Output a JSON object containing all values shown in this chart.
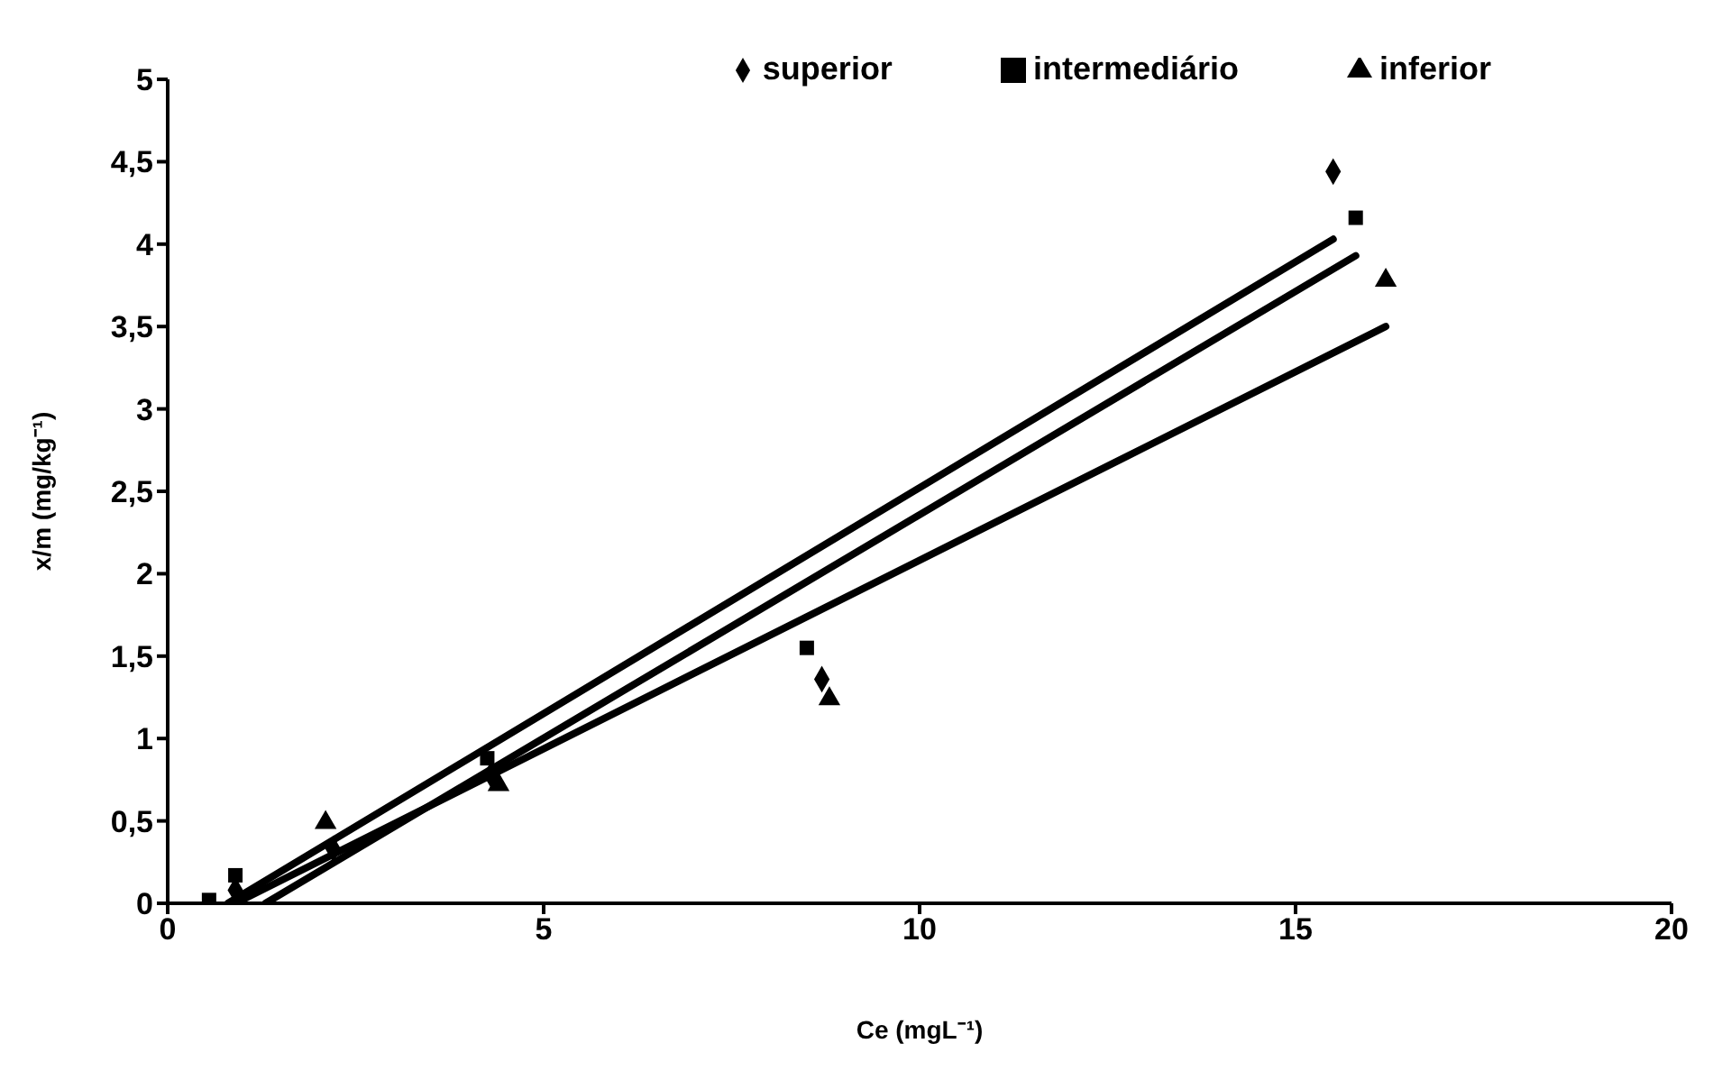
{
  "chart_data": {
    "type": "scatter",
    "xlabel": "Ce (mgL⁻¹)",
    "ylabel": "x/m (mg/kg⁻¹)",
    "xlim": [
      0,
      20
    ],
    "xticks": [
      0,
      5,
      10,
      15,
      20
    ],
    "ylim": [
      0,
      5
    ],
    "yticks": [
      0,
      {
        "value": 0.5,
        "label": "0,5"
      },
      1,
      {
        "value": 1.5,
        "label": "1,5"
      },
      2,
      {
        "value": 2.5,
        "label": "2,5"
      },
      3,
      {
        "value": 3.5,
        "label": "3,5"
      },
      4,
      {
        "value": 4.5,
        "label": "4,5"
      },
      5
    ],
    "grid": false,
    "legend": "top right",
    "series": [
      {
        "name": "superior",
        "marker": "diamond",
        "color": "#000000",
        "x": [
          0.9,
          2.2,
          4.3,
          8.7,
          15.5
        ],
        "values": [
          0.08,
          0.33,
          0.78,
          1.36,
          4.44
        ]
      },
      {
        "name": "intermediário",
        "marker": "square",
        "color": "#000000",
        "x": [
          0.55,
          0.9,
          4.25,
          8.5,
          15.8
        ],
        "values": [
          0.02,
          0.17,
          0.88,
          1.55,
          4.16
        ]
      },
      {
        "name": "inferior",
        "marker": "triangle",
        "color": "#000000",
        "x": [
          2.1,
          4.4,
          8.8,
          16.2
        ],
        "values": [
          0.49,
          0.72,
          1.24,
          3.78
        ]
      },
      {
        "type": "line",
        "marker": "none",
        "color": "#000000",
        "x": [
          0.8,
          15.5
        ],
        "values": [
          0,
          4.03
        ]
      },
      {
        "type": "line",
        "marker": "none",
        "color": "#000000",
        "x": [
          1.3,
          15.8
        ],
        "values": [
          0,
          3.93
        ]
      },
      {
        "type": "line",
        "marker": "none",
        "color": "#000000",
        "x": [
          0.9,
          16.2
        ],
        "values": [
          0,
          3.5
        ]
      }
    ]
  }
}
